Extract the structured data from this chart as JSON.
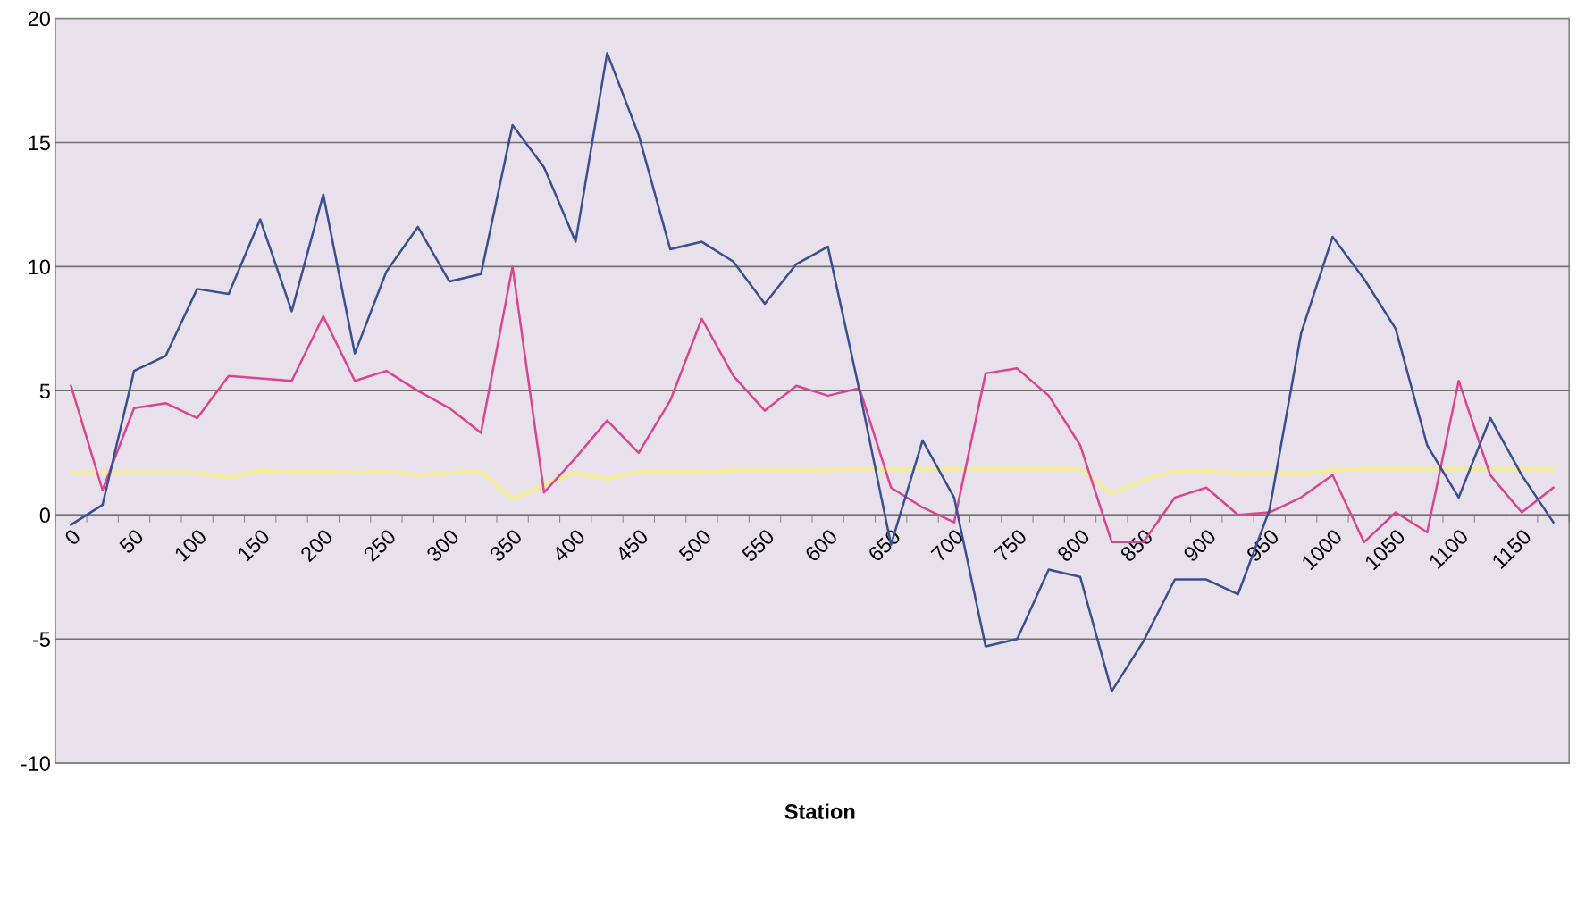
{
  "chart_data": {
    "type": "line",
    "xlabel": "Station",
    "categories": [
      "0",
      null,
      "50",
      null,
      "100",
      null,
      "150",
      null,
      "200",
      null,
      "250",
      null,
      "300",
      null,
      "350",
      null,
      "400",
      null,
      "450",
      null,
      "500",
      null,
      "550",
      null,
      "600",
      null,
      "650",
      null,
      "700",
      null,
      "750",
      null,
      "800",
      null,
      "850",
      null,
      "900",
      null,
      "950",
      null,
      "1000",
      null,
      "1050",
      null,
      "1100",
      null,
      "1150",
      null
    ],
    "series": [
      {
        "color": "#3a4f8f",
        "values": [
          -0.4,
          0.4,
          5.8,
          6.4,
          9.1,
          8.9,
          11.9,
          8.2,
          12.9,
          6.5,
          9.8,
          11.6,
          9.4,
          9.7,
          15.7,
          14.0,
          11.0,
          18.6,
          15.3,
          10.7,
          11.0,
          10.2,
          8.5,
          10.1,
          10.8,
          5.0,
          -1.2,
          3.0,
          0.7,
          -5.3,
          -5.0,
          -2.2,
          -2.5,
          -7.1,
          -5.1,
          -2.6,
          -2.6,
          -3.2,
          0.2,
          7.3,
          11.2,
          9.5,
          7.5,
          2.8,
          0.7,
          3.9,
          1.6,
          -0.3
        ]
      },
      {
        "color": "#d9468f",
        "values": [
          5.2,
          1.0,
          4.3,
          4.5,
          3.9,
          5.6,
          5.5,
          5.4,
          8.0,
          5.4,
          5.8,
          5.0,
          4.3,
          3.3,
          10.0,
          0.9,
          2.3,
          3.8,
          2.5,
          4.6,
          7.9,
          5.6,
          4.2,
          5.2,
          4.8,
          5.1,
          1.1,
          0.3,
          -0.3,
          5.7,
          5.9,
          4.8,
          2.8,
          -1.1,
          -1.1,
          0.7,
          1.1,
          0.0,
          0.1,
          0.7,
          1.6,
          -1.1,
          0.1,
          -0.7,
          5.4,
          1.6,
          0.1,
          1.1
        ]
      },
      {
        "color": "#f2eb9a",
        "values": [
          1.7,
          1.7,
          1.7,
          1.7,
          1.7,
          1.5,
          1.8,
          1.75,
          1.75,
          1.7,
          1.75,
          1.6,
          1.7,
          1.75,
          0.65,
          1.2,
          1.7,
          1.45,
          1.75,
          1.75,
          1.75,
          1.8,
          1.8,
          1.8,
          1.8,
          1.85,
          1.85,
          1.85,
          1.85,
          1.85,
          1.85,
          1.85,
          1.85,
          0.85,
          1.4,
          1.75,
          1.8,
          1.65,
          1.7,
          1.65,
          1.8,
          1.85,
          1.85,
          1.85,
          1.85,
          1.85,
          1.85,
          1.85
        ]
      }
    ],
    "ylim": [
      -10,
      20
    ],
    "yticks": [
      -10,
      -5,
      0,
      5,
      10,
      15,
      20
    ],
    "grid": "y",
    "legend": false,
    "marker": "none",
    "line_style": "solid"
  }
}
